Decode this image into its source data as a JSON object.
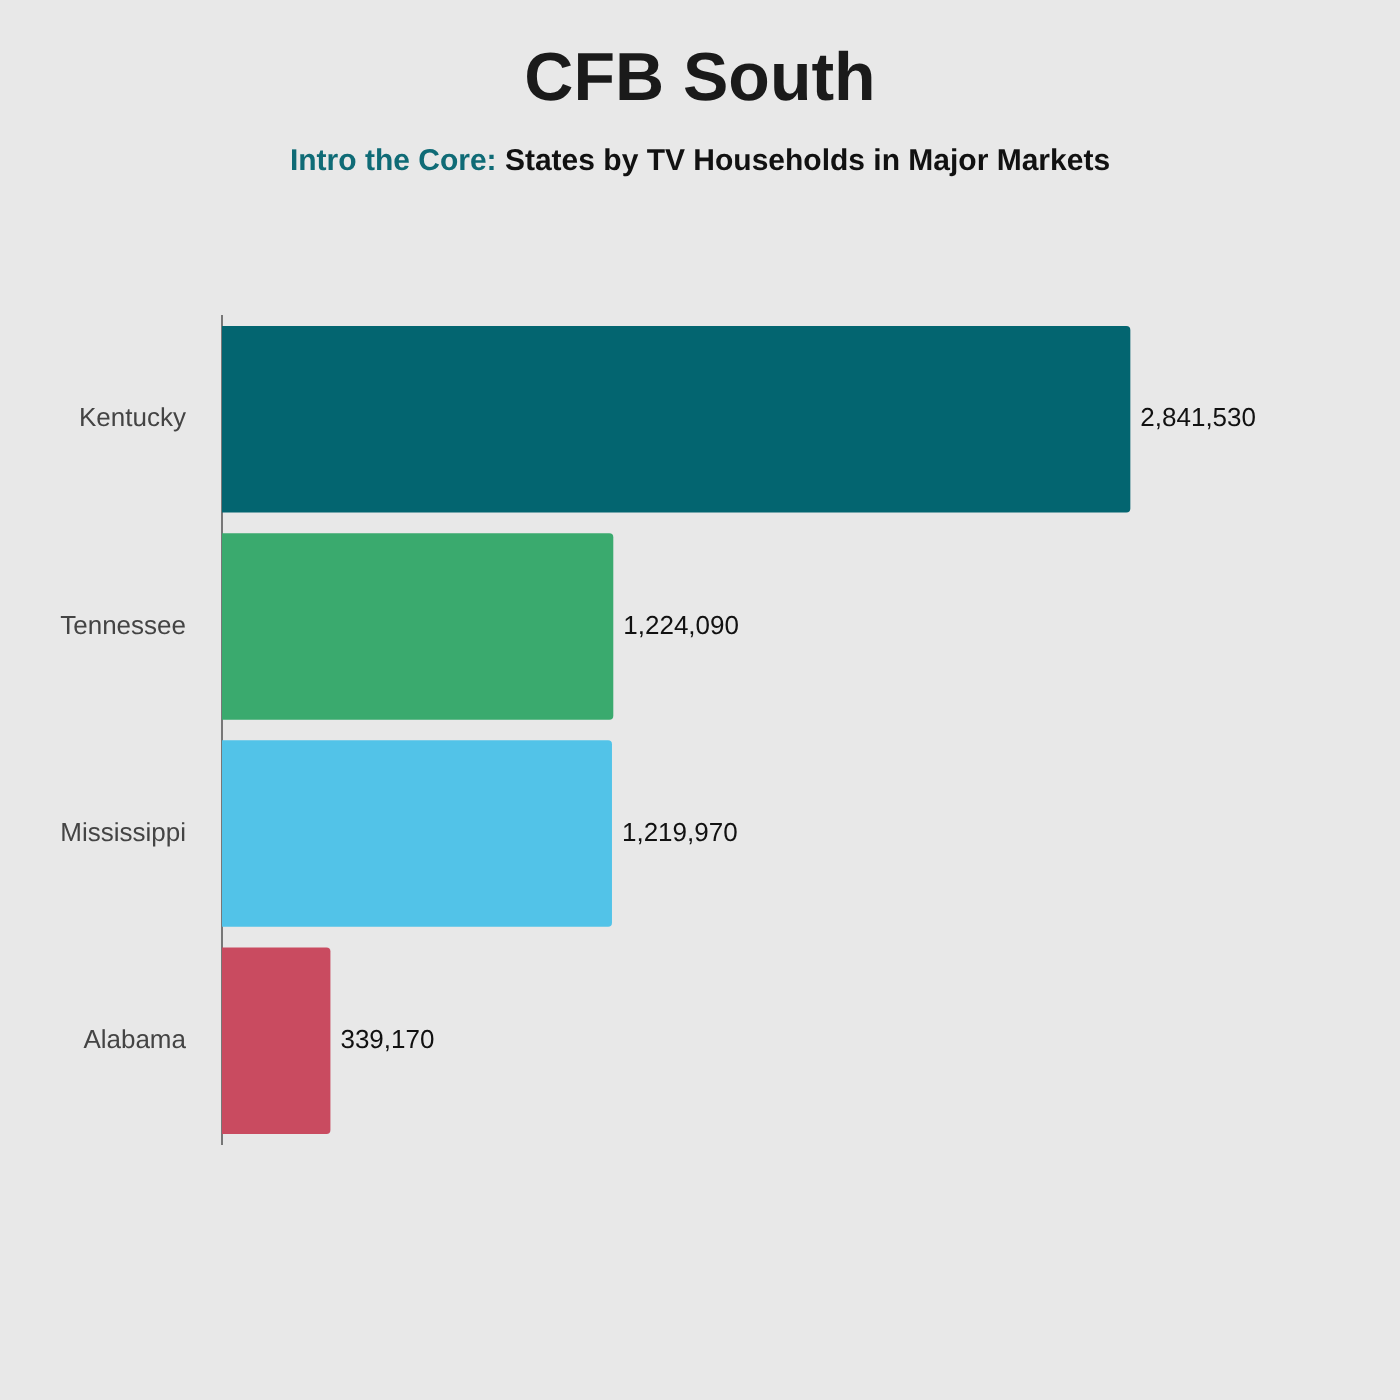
{
  "chart_data": {
    "type": "bar",
    "orientation": "horizontal",
    "title": "CFB South",
    "subtitle": "Intro the Core: States by TV Households in Major Markets",
    "categories": [
      "Kentucky",
      "Tennessee",
      "Mississippi",
      "Alabama"
    ],
    "values": [
      2841530,
      1224090,
      1219970,
      339170
    ],
    "value_labels": [
      "2,841,530",
      "1,224,090",
      "1,219,970",
      "339,170"
    ],
    "colors": [
      "#036570",
      "#3aaa6e",
      "#52c3e8",
      "#c94b60"
    ]
  }
}
